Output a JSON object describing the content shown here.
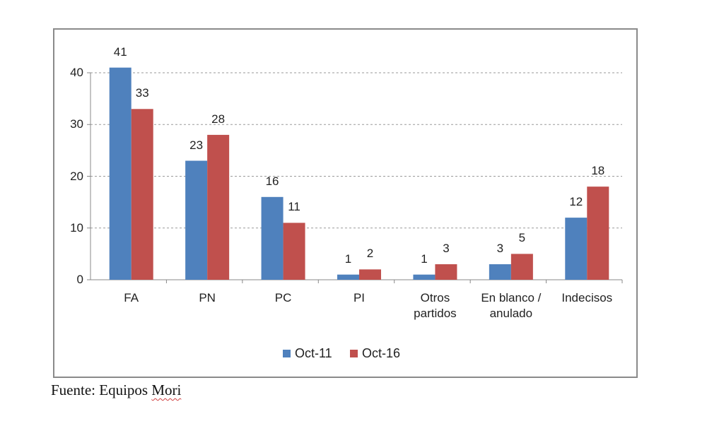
{
  "chart_data": {
    "type": "bar",
    "categories": [
      "FA",
      "PN",
      "PC",
      "PI",
      "Otros\npartidos",
      "En blanco /\nanulado",
      "Indecisos"
    ],
    "series": [
      {
        "name": "Oct-11",
        "values": [
          41,
          23,
          16,
          1,
          1,
          3,
          12
        ],
        "color": "#4F81BD"
      },
      {
        "name": "Oct-16",
        "values": [
          33,
          28,
          11,
          2,
          3,
          5,
          18
        ],
        "color": "#C0504D"
      }
    ],
    "ylim": [
      0,
      40
    ],
    "yticks": [
      0,
      10,
      20,
      30,
      40
    ],
    "grid": "horizontal dashed",
    "legend": "bottom",
    "data_labels": true
  },
  "source": {
    "prefix": "Fuente: Equipos ",
    "name": "Mori"
  }
}
